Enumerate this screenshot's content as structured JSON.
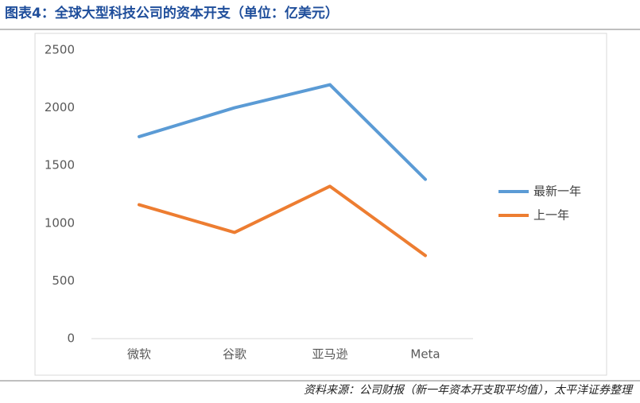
{
  "chart_data": {
    "type": "line",
    "title": "图表4：全球大型科技公司的资本开支（单位：亿美元）",
    "source": "资料来源：公司财报（新一年资本开支取平均值），太平洋证券整理",
    "categories": [
      "微软",
      "谷歌",
      "亚马逊",
      "Meta"
    ],
    "series": [
      {
        "name": "最新一年",
        "color": "#5b9bd5",
        "values": [
          1750,
          2000,
          2200,
          1380
        ]
      },
      {
        "name": "上一年",
        "color": "#ed7d31",
        "values": [
          1160,
          920,
          1320,
          720
        ]
      }
    ],
    "ylim": [
      0,
      2500
    ],
    "yticks": [
      0,
      500,
      1000,
      1500,
      2000,
      2500
    ],
    "grid": false,
    "legend": "right"
  }
}
